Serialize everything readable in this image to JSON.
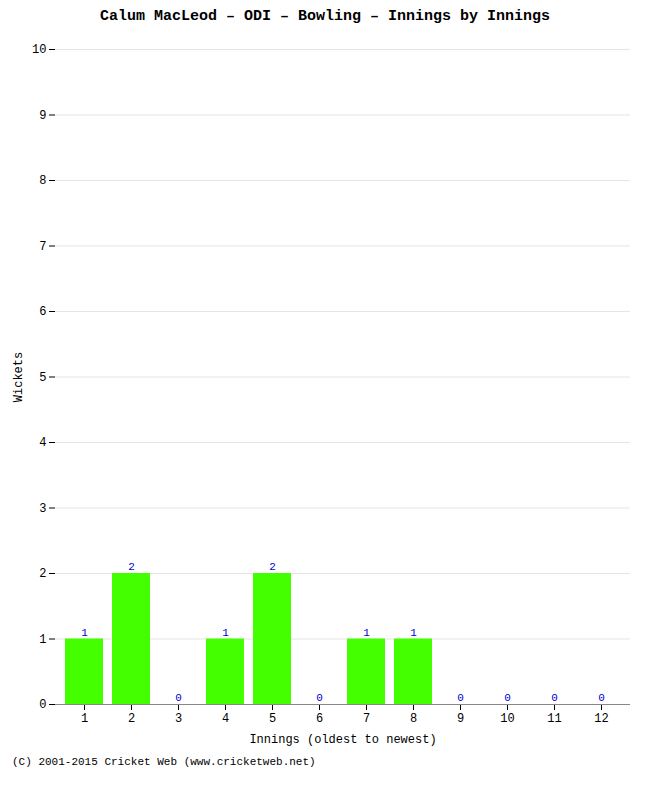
{
  "chart_data": {
    "type": "bar",
    "title": "Calum MacLeod – ODI – Bowling – Innings by Innings",
    "xlabel": "Innings (oldest to newest)",
    "ylabel": "Wickets",
    "categories": [
      1,
      2,
      3,
      4,
      5,
      6,
      7,
      8,
      9,
      10,
      11,
      12
    ],
    "values": [
      1,
      2,
      0,
      1,
      2,
      0,
      1,
      1,
      0,
      0,
      0,
      0
    ],
    "color": "#44ff00",
    "ylim": [
      0,
      10
    ],
    "yticks": [
      0,
      1,
      2,
      3,
      4,
      5,
      6,
      7,
      8,
      9,
      10
    ],
    "grid": true,
    "data_labels": true,
    "annotations": [
      "(C) 2001-2015 Cricket Web (www.cricketweb.net)"
    ]
  }
}
